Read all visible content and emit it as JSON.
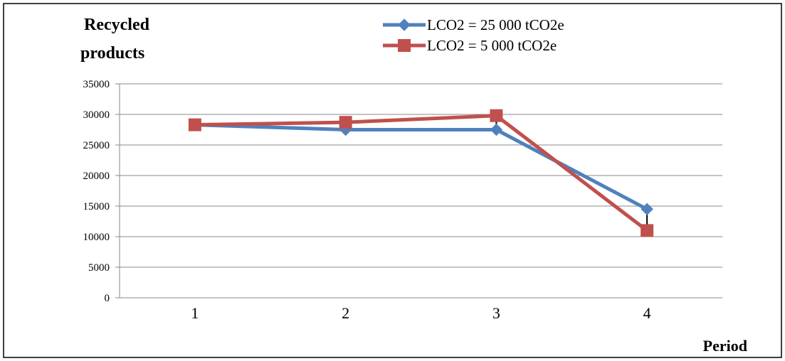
{
  "chart_data": {
    "type": "line",
    "title_lines": [
      "Recycled",
      "products"
    ],
    "xlabel": "Period",
    "ylabel": "",
    "categories": [
      "1",
      "2",
      "3",
      "4"
    ],
    "yticks": [
      0,
      5000,
      10000,
      15000,
      20000,
      25000,
      30000,
      35000
    ],
    "ylim": [
      0,
      35000
    ],
    "grid": "horizontal",
    "legend_position": "top-center",
    "series": [
      {
        "name": "LCO2 = 25 000 tCO2e",
        "values": [
          28300,
          27500,
          27500,
          14500
        ],
        "color": "#4F81BD",
        "marker": "diamond"
      },
      {
        "name": "LCO2 = 5 000 tCO2e",
        "values": [
          28300,
          28700,
          29800,
          11000
        ],
        "color": "#C0504D",
        "marker": "square"
      }
    ],
    "error_bars": "vertical black lines connecting the two series values at periods 2, 3 and 4"
  }
}
